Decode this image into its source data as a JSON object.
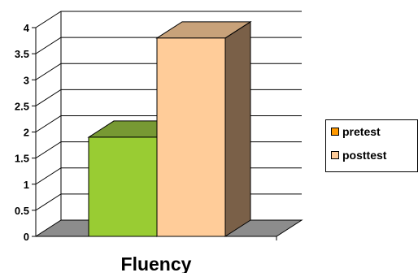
{
  "chart_data": {
    "type": "bar",
    "categories": [
      "Fluency"
    ],
    "series": [
      {
        "name": "pretest",
        "values": [
          1.9
        ],
        "color": "#99CC33",
        "top_color": "#779933",
        "side_color": "#557722"
      },
      {
        "name": "posttest",
        "values": [
          3.8
        ],
        "color": "#FFCC99",
        "top_color": "#C8A27A",
        "side_color": "#7A6048"
      }
    ],
    "legend_colors": [
      "#FF9900",
      "#FFCC99"
    ],
    "ylim": [
      0,
      4
    ],
    "yticks": [
      "0",
      "0.5",
      "1",
      "1.5",
      "2",
      "2.5",
      "3",
      "3.5",
      "4"
    ],
    "grid": true,
    "legend_position": "right",
    "style": "3d"
  }
}
